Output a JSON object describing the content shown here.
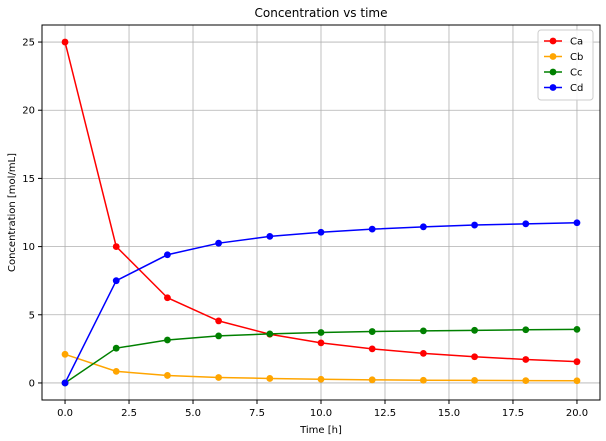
{
  "chart_data": {
    "type": "line",
    "title": "Concentration vs time",
    "xlabel": "Time [h]",
    "ylabel": "Concentration [mol/mL]",
    "x": [
      0,
      2,
      4,
      6,
      8,
      10,
      12,
      14,
      16,
      18,
      20
    ],
    "xlim": [
      -0.9,
      20.9
    ],
    "ylim": [
      -1.25,
      26.25
    ],
    "xticks": [
      0.0,
      2.5,
      5.0,
      7.5,
      10.0,
      12.5,
      15.0,
      17.5,
      20.0
    ],
    "xtick_labels": [
      "0.0",
      "2.5",
      "5.0",
      "7.5",
      "10.0",
      "12.5",
      "15.0",
      "17.5",
      "20.0"
    ],
    "yticks": [
      0,
      5,
      10,
      15,
      20,
      25
    ],
    "ytick_labels": [
      "0",
      "5",
      "10",
      "15",
      "20",
      "25"
    ],
    "grid": true,
    "legend_position": "top-right",
    "series": [
      {
        "name": "Ca",
        "color": "#ff0000",
        "values": [
          25.0,
          10.0,
          6.25,
          4.55,
          3.57,
          2.94,
          2.5,
          2.17,
          1.92,
          1.72,
          1.56
        ]
      },
      {
        "name": "Cb",
        "color": "#ffa500",
        "values": [
          2.1,
          0.85,
          0.55,
          0.4,
          0.33,
          0.27,
          0.23,
          0.2,
          0.19,
          0.17,
          0.16
        ]
      },
      {
        "name": "Cc",
        "color": "#008000",
        "values": [
          0.0,
          2.55,
          3.15,
          3.45,
          3.6,
          3.7,
          3.77,
          3.82,
          3.86,
          3.9,
          3.93
        ]
      },
      {
        "name": "Cd",
        "color": "#0000ff",
        "values": [
          0.0,
          7.5,
          9.4,
          10.25,
          10.75,
          11.05,
          11.28,
          11.45,
          11.58,
          11.67,
          11.75
        ]
      }
    ]
  }
}
